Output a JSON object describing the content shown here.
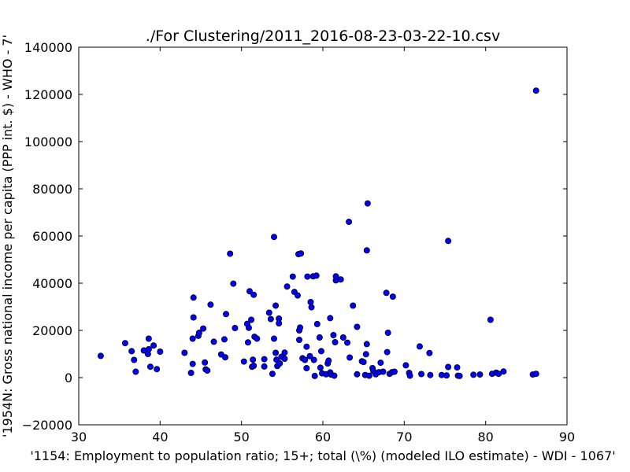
{
  "chart_data": {
    "type": "scatter",
    "title": "./For Clustering/2011_2016-08-23-03-22-10.csv",
    "xlabel": "'1154: Employment to population ratio; 15+; total (\\%)  (modeled ILO estimate) - WDI - 1067'",
    "ylabel": "'1954N: Gross national income per capita (PPP int. $) - WHO - 7'",
    "xlim": [
      30,
      90
    ],
    "ylim": [
      -20000,
      140000
    ],
    "xticks": [
      "30",
      "40",
      "50",
      "60",
      "70",
      "80",
      "90"
    ],
    "yticks": [
      "−20000",
      "0",
      "20000",
      "40000",
      "60000",
      "80000",
      "100000",
      "120000",
      "140000"
    ],
    "grid": false,
    "marker_color": "#0000ff",
    "points": [
      [
        32.7,
        9200
      ],
      [
        35.7,
        14600
      ],
      [
        36.5,
        11200
      ],
      [
        36.8,
        7500
      ],
      [
        37.0,
        2500
      ],
      [
        38.0,
        11500
      ],
      [
        38.5,
        10000
      ],
      [
        38.6,
        12000
      ],
      [
        38.6,
        16500
      ],
      [
        38.8,
        4600
      ],
      [
        39.2,
        13600
      ],
      [
        39.6,
        3600
      ],
      [
        40.0,
        11000
      ],
      [
        43.0,
        10500
      ],
      [
        43.8,
        2000
      ],
      [
        44.0,
        5800
      ],
      [
        44.0,
        16500
      ],
      [
        44.1,
        25500
      ],
      [
        44.1,
        33900
      ],
      [
        44.7,
        17700
      ],
      [
        44.8,
        19000
      ],
      [
        45.3,
        20800
      ],
      [
        45.5,
        6400
      ],
      [
        45.6,
        3500
      ],
      [
        45.8,
        3000
      ],
      [
        46.2,
        30900
      ],
      [
        46.6,
        15200
      ],
      [
        47.5,
        9800
      ],
      [
        47.9,
        16200
      ],
      [
        48.0,
        8600
      ],
      [
        48.1,
        26900
      ],
      [
        48.6,
        52500
      ],
      [
        49.0,
        39800
      ],
      [
        49.2,
        21000
      ],
      [
        50.3,
        6800
      ],
      [
        50.7,
        22800
      ],
      [
        50.8,
        14900
      ],
      [
        50.9,
        21100
      ],
      [
        51.0,
        36600
      ],
      [
        51.2,
        24500
      ],
      [
        51.3,
        4600
      ],
      [
        51.4,
        7600
      ],
      [
        51.5,
        5000
      ],
      [
        51.5,
        35100
      ],
      [
        51.6,
        17300
      ],
      [
        51.9,
        16500
      ],
      [
        52.8,
        7800
      ],
      [
        52.8,
        4700
      ],
      [
        53.4,
        27500
      ],
      [
        53.6,
        24800
      ],
      [
        53.8,
        1600
      ],
      [
        54.0,
        16500
      ],
      [
        54.0,
        59600
      ],
      [
        54.2,
        30500
      ],
      [
        54.2,
        10500
      ],
      [
        54.3,
        7600
      ],
      [
        54.4,
        4900
      ],
      [
        54.6,
        25000
      ],
      [
        54.6,
        23000
      ],
      [
        54.7,
        6000
      ],
      [
        54.9,
        8800
      ],
      [
        55.3,
        10600
      ],
      [
        55.3,
        8000
      ],
      [
        55.6,
        38600
      ],
      [
        56.3,
        42800
      ],
      [
        56.5,
        36300
      ],
      [
        56.9,
        34800
      ],
      [
        57.0,
        52300
      ],
      [
        57.1,
        16000
      ],
      [
        57.1,
        20000
      ],
      [
        57.2,
        21200
      ],
      [
        57.3,
        52600
      ],
      [
        57.5,
        8200
      ],
      [
        57.8,
        7500
      ],
      [
        58.0,
        13100
      ],
      [
        58.0,
        4000
      ],
      [
        58.1,
        42800
      ],
      [
        58.4,
        9100
      ],
      [
        58.5,
        32000
      ],
      [
        58.6,
        29800
      ],
      [
        58.8,
        42900
      ],
      [
        58.9,
        7500
      ],
      [
        59.0,
        700
      ],
      [
        59.2,
        43200
      ],
      [
        59.3,
        22700
      ],
      [
        59.6,
        17000
      ],
      [
        59.7,
        4200
      ],
      [
        59.8,
        11200
      ],
      [
        59.9,
        1800
      ],
      [
        60.4,
        1400
      ],
      [
        60.6,
        6000
      ],
      [
        60.7,
        7200
      ],
      [
        60.9,
        25200
      ],
      [
        60.9,
        2200
      ],
      [
        61.0,
        1300
      ],
      [
        61.3,
        18000
      ],
      [
        61.4,
        800
      ],
      [
        61.5,
        15000
      ],
      [
        61.6,
        41200
      ],
      [
        61.6,
        42900
      ],
      [
        62.2,
        41600
      ],
      [
        62.5,
        17000
      ],
      [
        63.0,
        14800
      ],
      [
        63.2,
        66000
      ],
      [
        63.3,
        8500
      ],
      [
        63.7,
        30500
      ],
      [
        64.2,
        21500
      ],
      [
        64.2,
        1400
      ],
      [
        64.8,
        6900
      ],
      [
        65.0,
        6600
      ],
      [
        65.2,
        1100
      ],
      [
        65.3,
        9900
      ],
      [
        65.4,
        53900
      ],
      [
        65.4,
        14200
      ],
      [
        65.5,
        73800
      ],
      [
        65.7,
        800
      ],
      [
        66.1,
        4000
      ],
      [
        66.2,
        2800
      ],
      [
        66.5,
        1400
      ],
      [
        66.9,
        2300
      ],
      [
        67.1,
        6300
      ],
      [
        67.4,
        2500
      ],
      [
        67.8,
        35900
      ],
      [
        67.9,
        10800
      ],
      [
        68.0,
        19000
      ],
      [
        68.2,
        1600
      ],
      [
        68.5,
        2300
      ],
      [
        68.6,
        34300
      ],
      [
        68.8,
        2500
      ],
      [
        70.2,
        5200
      ],
      [
        70.6,
        2000
      ],
      [
        70.7,
        800
      ],
      [
        71.9,
        13200
      ],
      [
        72.1,
        1500
      ],
      [
        73.1,
        10400
      ],
      [
        73.2,
        1100
      ],
      [
        74.6,
        1100
      ],
      [
        75.2,
        900
      ],
      [
        75.4,
        4500
      ],
      [
        75.4,
        57900
      ],
      [
        76.5,
        4300
      ],
      [
        76.6,
        800
      ],
      [
        76.8,
        700
      ],
      [
        78.5,
        1200
      ],
      [
        79.3,
        1300
      ],
      [
        80.6,
        24500
      ],
      [
        80.8,
        1600
      ],
      [
        81.3,
        2100
      ],
      [
        81.6,
        1600
      ],
      [
        82.2,
        2600
      ],
      [
        85.8,
        1300
      ],
      [
        86.2,
        1600
      ],
      [
        86.2,
        121600
      ]
    ]
  }
}
